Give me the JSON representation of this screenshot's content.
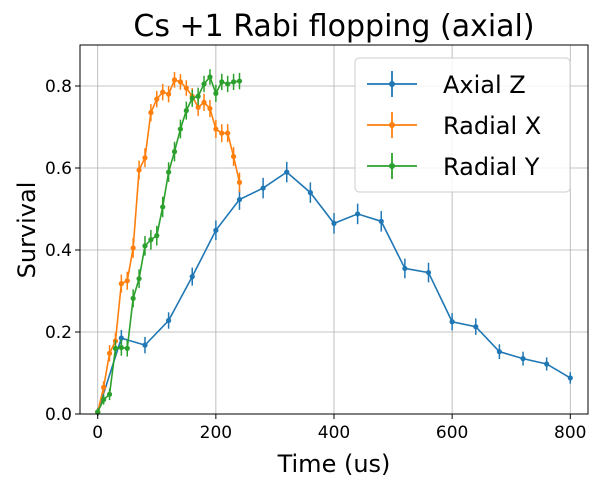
{
  "chart_data": {
    "type": "line",
    "title": "Cs +1 Rabi flopping (axial)",
    "xlabel": "Time (us)",
    "ylabel": "Survival",
    "xlim": [
      -30,
      830
    ],
    "ylim": [
      0,
      0.9
    ],
    "xticks": [
      0,
      200,
      400,
      600,
      800
    ],
    "yticks": [
      0.0,
      0.2,
      0.4,
      0.6,
      0.8
    ],
    "xtick_labels": [
      "0",
      "200",
      "400",
      "600",
      "800"
    ],
    "ytick_labels": [
      "0.0",
      "0.2",
      "0.4",
      "0.6",
      "0.8"
    ],
    "grid": true,
    "legend_position": "top-right",
    "error_bars": true,
    "series": [
      {
        "name": "Axial Z",
        "color": "#1f77b4",
        "x": [
          0,
          40,
          80,
          120,
          160,
          200,
          240,
          280,
          320,
          360,
          400,
          440,
          480,
          520,
          560,
          600,
          640,
          680,
          720,
          760,
          800
        ],
        "y": [
          0.005,
          0.185,
          0.168,
          0.228,
          0.335,
          0.448,
          0.523,
          0.551,
          0.59,
          0.54,
          0.465,
          0.488,
          0.47,
          0.355,
          0.345,
          0.225,
          0.213,
          0.152,
          0.135,
          0.122,
          0.088
        ],
        "yerr": [
          0.01,
          0.02,
          0.02,
          0.02,
          0.022,
          0.024,
          0.025,
          0.025,
          0.025,
          0.025,
          0.025,
          0.025,
          0.025,
          0.024,
          0.024,
          0.021,
          0.02,
          0.018,
          0.017,
          0.016,
          0.014
        ]
      },
      {
        "name": "Radial X",
        "color": "#ff7f0e",
        "x": [
          0,
          10,
          20,
          30,
          40,
          50,
          60,
          70,
          80,
          90,
          100,
          110,
          120,
          130,
          140,
          150,
          160,
          170,
          180,
          190,
          200,
          210,
          220,
          230,
          240
        ],
        "y": [
          0.005,
          0.065,
          0.148,
          0.178,
          0.318,
          0.325,
          0.405,
          0.595,
          0.625,
          0.735,
          0.768,
          0.785,
          0.78,
          0.815,
          0.81,
          0.795,
          0.775,
          0.748,
          0.76,
          0.745,
          0.695,
          0.685,
          0.685,
          0.628,
          0.565
        ],
        "yerr": [
          0.008,
          0.015,
          0.02,
          0.02,
          0.022,
          0.022,
          0.024,
          0.023,
          0.023,
          0.021,
          0.02,
          0.02,
          0.02,
          0.019,
          0.019,
          0.019,
          0.02,
          0.021,
          0.021,
          0.021,
          0.022,
          0.022,
          0.022,
          0.023,
          0.024
        ]
      },
      {
        "name": "Radial Y",
        "color": "#2ca02c",
        "x": [
          0,
          10,
          20,
          30,
          40,
          50,
          60,
          70,
          80,
          90,
          100,
          110,
          120,
          130,
          140,
          150,
          160,
          170,
          180,
          190,
          200,
          210,
          220,
          230,
          240
        ],
        "y": [
          0.005,
          0.035,
          0.048,
          0.16,
          0.162,
          0.16,
          0.282,
          0.33,
          0.41,
          0.425,
          0.435,
          0.505,
          0.59,
          0.64,
          0.695,
          0.74,
          0.77,
          0.775,
          0.805,
          0.822,
          0.782,
          0.81,
          0.805,
          0.81,
          0.812
        ],
        "yerr": [
          0.008,
          0.012,
          0.014,
          0.02,
          0.02,
          0.02,
          0.022,
          0.023,
          0.024,
          0.024,
          0.024,
          0.025,
          0.024,
          0.024,
          0.023,
          0.022,
          0.021,
          0.021,
          0.02,
          0.019,
          0.021,
          0.02,
          0.02,
          0.02,
          0.02
        ]
      }
    ]
  }
}
